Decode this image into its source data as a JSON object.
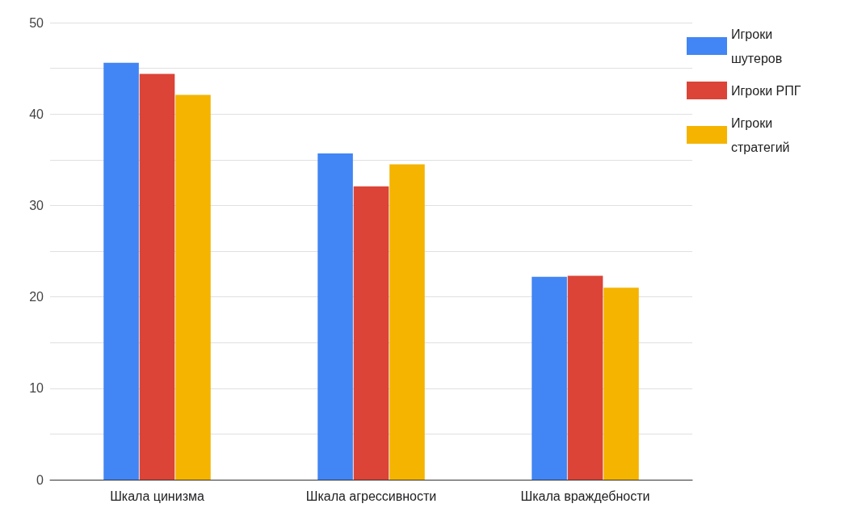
{
  "chart_data": {
    "type": "bar",
    "categories": [
      "Шкала цинизма",
      "Шкала агрессивности",
      "Шкала враждебности"
    ],
    "series": [
      {
        "name": "Игроки шутеров",
        "color": "#4285f4",
        "values": [
          45.6,
          35.7,
          22.2
        ]
      },
      {
        "name": "Игроки РПГ",
        "color": "#db4437",
        "values": [
          44.4,
          32.1,
          22.3
        ]
      },
      {
        "name": "Игроки стратегий",
        "color": "#f4b400",
        "values": [
          42.1,
          34.5,
          21.0
        ]
      }
    ],
    "ylim": [
      0,
      50
    ],
    "yticks": [
      0,
      {
        "value": 5,
        "label": null
      },
      10,
      {
        "value": 15,
        "label": null
      },
      20,
      {
        "value": 25,
        "label": null
      },
      30,
      {
        "value": 35,
        "label": null
      },
      40,
      {
        "value": 45,
        "label": null
      },
      50
    ],
    "grid": "y",
    "legend": "top right"
  }
}
